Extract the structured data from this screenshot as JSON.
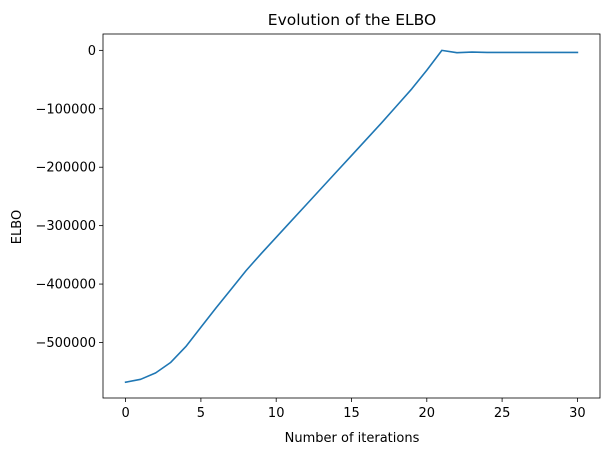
{
  "chart_data": {
    "type": "line",
    "title": "Evolution of the ELBO",
    "xlabel": "Number of iterations",
    "ylabel": "ELBO",
    "xlim": [
      -1.5,
      31.5
    ],
    "ylim": [
      -595000,
      28000
    ],
    "xticks": [
      0,
      5,
      10,
      15,
      20,
      25,
      30
    ],
    "xtick_labels": [
      "0",
      "5",
      "10",
      "15",
      "20",
      "25",
      "30"
    ],
    "yticks": [
      0,
      -100000,
      -200000,
      -300000,
      -400000,
      -500000
    ],
    "ytick_labels": [
      "0",
      "−100000",
      "−200000",
      "−300000",
      "−400000",
      "−500000"
    ],
    "grid": false,
    "series": [
      {
        "color": "#1f77b4",
        "x": [
          0,
          1,
          2,
          3,
          4,
          5,
          6,
          7,
          8,
          9,
          10,
          11,
          12,
          13,
          14,
          15,
          16,
          17,
          18,
          19,
          20,
          21,
          22,
          23,
          24,
          25,
          26,
          27,
          28,
          29,
          30
        ],
        "values": [
          -568000,
          -563000,
          -552000,
          -534000,
          -507000,
          -474000,
          -441000,
          -409000,
          -377000,
          -348000,
          -320000,
          -292000,
          -264000,
          -236000,
          -208000,
          -180000,
          -152000,
          -124000,
          -95000,
          -66000,
          -34000,
          0,
          -4000,
          -3000,
          -3500,
          -3500,
          -3500,
          -3500,
          -3500,
          -3500,
          -3500
        ]
      }
    ]
  }
}
